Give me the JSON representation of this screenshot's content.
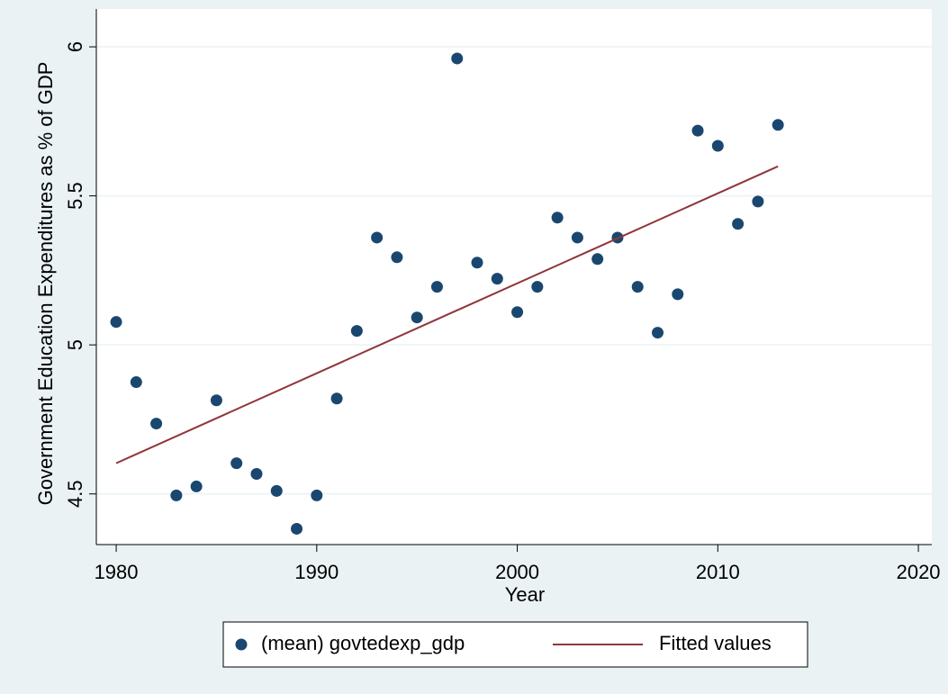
{
  "chart_data": {
    "type": "scatter",
    "x_label": "Year",
    "y_label": "Government Education Expenditures as % of GDP",
    "xlim": [
      1979.01,
      2020.67
    ],
    "ylim": [
      4.33,
      6.127
    ],
    "xticks": [
      1980,
      1990,
      2000,
      2010,
      2020
    ],
    "yticks": [
      4.5,
      5,
      5.5,
      6
    ],
    "grid": true,
    "legend": "bottom",
    "series": [
      {
        "name": "(mean) govtedexp_gdp",
        "color": "#1a476f",
        "type": "scatter",
        "x": [
          1980,
          1981,
          1982,
          1983,
          1984,
          1985,
          1986,
          1987,
          1988,
          1989,
          1990,
          1991,
          1992,
          1993,
          1994,
          1995,
          1996,
          1997,
          1998,
          1999,
          2000,
          2001,
          2002,
          2003,
          2004,
          2005,
          2006,
          2007,
          2008,
          2009,
          2010,
          2011,
          2012,
          2013
        ],
        "values": [
          5.077,
          4.875,
          4.736,
          4.495,
          4.525,
          4.814,
          4.603,
          4.567,
          4.51,
          4.383,
          4.495,
          4.82,
          5.047,
          5.36,
          5.294,
          5.092,
          5.195,
          5.961,
          5.276,
          5.222,
          5.11,
          5.195,
          5.427,
          5.36,
          5.288,
          5.36,
          5.195,
          5.041,
          5.17,
          5.719,
          5.668,
          5.406,
          5.481,
          5.738
        ]
      },
      {
        "name": "Fitted values",
        "color": "#90353b",
        "type": "line",
        "x": [
          1980,
          2013
        ],
        "values": [
          4.603,
          5.599
        ]
      }
    ]
  }
}
